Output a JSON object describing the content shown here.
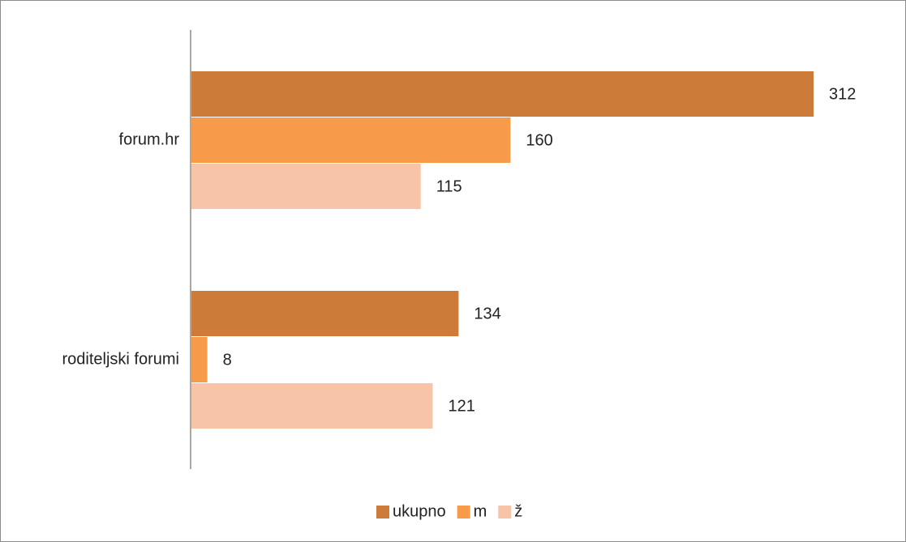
{
  "chart_data": {
    "type": "bar",
    "orientation": "horizontal",
    "categories": [
      "forum.hr",
      "roditeljski forumi"
    ],
    "series": [
      {
        "name": "ukupno",
        "values": [
          312,
          134
        ],
        "color": "#cd7b39"
      },
      {
        "name": "m",
        "values": [
          160,
          8
        ],
        "color": "#f79a4a"
      },
      {
        "name": "ž",
        "values": [
          115,
          121
        ],
        "color": "#f8c4a8"
      }
    ],
    "xlim": [
      0,
      312
    ],
    "grid": false,
    "legend_position": "bottom",
    "data_labels": true
  }
}
